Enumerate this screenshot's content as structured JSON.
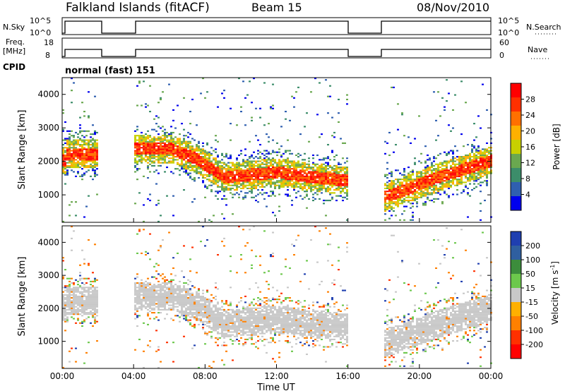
{
  "header": {
    "station": "Falkland Islands (fitACF)",
    "beam": "Beam 15",
    "date": "08/Nov/2010"
  },
  "panels": {
    "nsky": {
      "label": "N.Sky",
      "tick_top": "10^5",
      "tick_bottom": "10^0"
    },
    "nsearch": {
      "label": "N.Search",
      "tick_top": "10^5",
      "tick_bottom": "10^0"
    },
    "freq": {
      "label_line1": "Freq.",
      "label_line2": "[MHz]",
      "tick_top": "18",
      "tick_bottom": "8"
    },
    "nave": {
      "label": "Nave",
      "tick_top": "60",
      "tick_bottom": "0"
    },
    "cpid": {
      "label": "CPID",
      "value": "normal (fast) 151"
    }
  },
  "colors": {
    "power_scale": [
      "#0000ee",
      "#2f5fb0",
      "#3c8d6a",
      "#6aa84f",
      "#c8d000",
      "#ffb000",
      "#ff7000",
      "#ff3000",
      "#ff0000"
    ],
    "velocity_scale": [
      "#1f3fb0",
      "#2f5fa0",
      "#3c8d3c",
      "#6cc84c",
      "#c8c8c8",
      "#ffb000",
      "#ff8000",
      "#ff3000",
      "#ff0000"
    ],
    "gray": "#c8c8c8"
  },
  "chart_data": [
    {
      "type": "heatmap",
      "name": "power",
      "ylabel": "Slant Range [km]",
      "yticks": [
        1000,
        2000,
        3000,
        4000
      ],
      "ylim": [
        180,
        4500
      ],
      "colorbar_label": "Power [dB]",
      "colorbar_ticks": [
        "4",
        "8",
        "12",
        "16",
        "20",
        "24",
        "28"
      ],
      "colorbar_range": [
        0,
        30
      ],
      "data_gaps_hours": [
        [
          2.0,
          4.0
        ],
        [
          16.0,
          18.0
        ]
      ],
      "main_echo_band": [
        {
          "hour": 0.2,
          "range_km": 2200
        },
        {
          "hour": 1.9,
          "range_km": 2200
        },
        {
          "hour": 4.0,
          "range_km": 2350
        },
        {
          "hour": 6.0,
          "range_km": 2350
        },
        {
          "hour": 7.5,
          "range_km": 2050
        },
        {
          "hour": 9.0,
          "range_km": 1500
        },
        {
          "hour": 12.0,
          "range_km": 1650
        },
        {
          "hour": 14.0,
          "range_km": 1500
        },
        {
          "hour": 16.0,
          "range_km": 1400
        },
        {
          "hour": 18.0,
          "range_km": 900
        },
        {
          "hour": 21.0,
          "range_km": 1500
        },
        {
          "hour": 24.0,
          "range_km": 2000
        }
      ]
    },
    {
      "type": "heatmap",
      "name": "velocity",
      "ylabel": "Slant Range [km]",
      "yticks": [
        1000,
        2000,
        3000,
        4000
      ],
      "ylim": [
        180,
        4500
      ],
      "xlabel": "Time UT",
      "xticks": [
        "00:00",
        "04:00",
        "08:00",
        "12:00",
        "16:00",
        "20:00",
        "00:00"
      ],
      "xlim_hours": [
        0,
        24
      ],
      "colorbar_label": "Velocity [m s",
      "colorbar_label_sup": "-1",
      "colorbar_label_end": "]",
      "colorbar_ticks": [
        "200",
        "100",
        "50",
        "15",
        "-15",
        "-50",
        "-100",
        "-200"
      ],
      "data_gaps_hours": [
        [
          2.0,
          4.0
        ],
        [
          16.0,
          18.0
        ]
      ]
    }
  ]
}
